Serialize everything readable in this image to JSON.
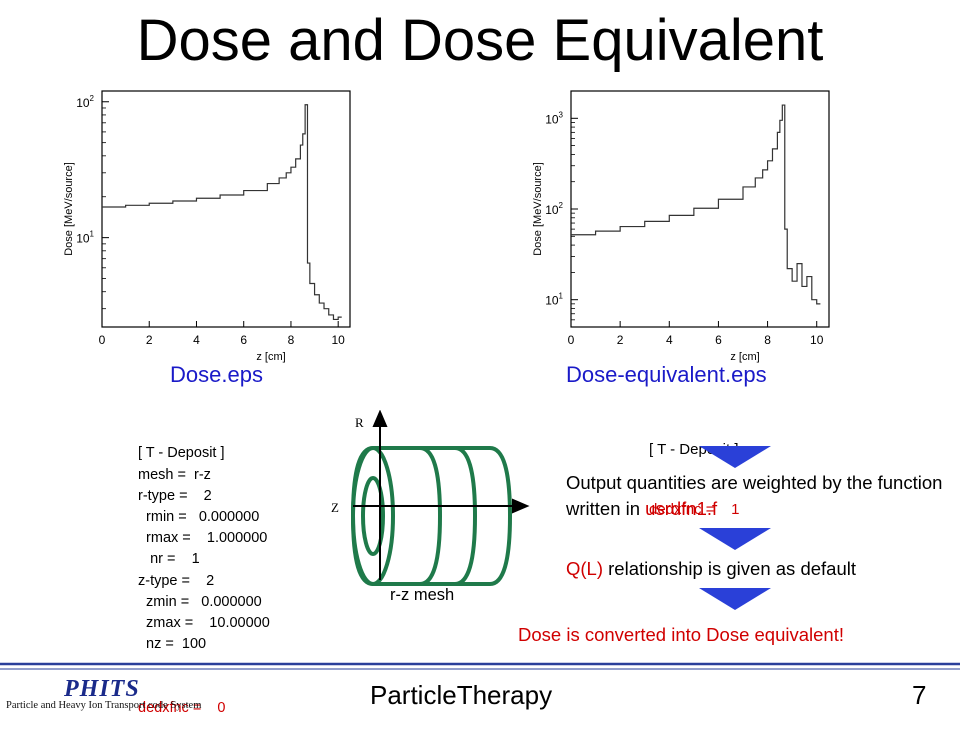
{
  "slide": {
    "title": "Dose and Dose Equivalent",
    "footer_center": "ParticleTherapy",
    "page_number": "7",
    "logo": {
      "text": "PHITS",
      "subtitle": "Particle and Heavy Ion Transport code System"
    }
  },
  "captions": {
    "left": "Dose.eps",
    "right": "Dose-equivalent.eps"
  },
  "input_left": {
    "lines": [
      "[ T - Deposit ]",
      "mesh =  r-z",
      "r-type =    2",
      "  rmin =   0.000000",
      "  rmax =    1.000000",
      "   nr =    1",
      "z-type =    2",
      "  zmin =   0.000000",
      "  zmax =    10.00000",
      "  nz =  100"
    ],
    "red_line": "dedxfnc =    0"
  },
  "input_right": {
    "header": "[ T - Deposit ]",
    "red_line": "dedxfnc =    1"
  },
  "mesh_diagram": {
    "label": "r-z mesh",
    "axis_r": "R",
    "axis_z": "Z"
  },
  "explanations": {
    "step1": {
      "text": "Output quantities are weighted by the function written in ",
      "highlight": "usrdfn1.f"
    },
    "step2": {
      "highlight": "Q(L)",
      "text": " relationship is given as default"
    },
    "conclusion": "Dose is converted into Dose equivalent!"
  },
  "colors": {
    "highlight_red": "#d00000",
    "caption_blue": "#1a1ac8",
    "arrow_blue": "#2a40d8",
    "mesh_green": "#1f7a4a"
  },
  "chart_data": [
    {
      "type": "line",
      "xlabel": "z [cm]",
      "ylabel": "Dose [MeV/source]",
      "xlim": [
        0,
        10.5
      ],
      "ylim": [
        2.2,
        120
      ],
      "log_y": true,
      "x_ticks": [
        "0",
        "2",
        "4",
        "6",
        "8",
        "10"
      ],
      "y_ticks": [
        "10",
        "10"
      ],
      "y_tick_exponents": [
        "1",
        "2"
      ],
      "x": [
        0,
        1,
        2,
        3,
        4,
        5,
        6,
        7,
        7.5,
        7.8,
        8.0,
        8.2,
        8.4,
        8.5,
        8.6,
        8.7,
        8.8,
        9.0,
        9.2,
        9.4,
        9.6,
        9.8,
        10.0
      ],
      "values": [
        16.8,
        17.3,
        17.9,
        18.6,
        19.5,
        20.6,
        22.2,
        25,
        27.5,
        30,
        33,
        38,
        48,
        58,
        95,
        6.5,
        4.6,
        3.8,
        3.3,
        3.0,
        2.7,
        2.5,
        2.6
      ]
    },
    {
      "type": "line",
      "xlabel": "z [cm]",
      "ylabel": "Dose [MeV/source]",
      "xlim": [
        0,
        10.5
      ],
      "ylim": [
        5,
        2000
      ],
      "log_y": true,
      "x_ticks": [
        "0",
        "2",
        "4",
        "6",
        "8",
        "10"
      ],
      "y_ticks": [
        "10",
        "10",
        "10"
      ],
      "y_tick_exponents": [
        "1",
        "2",
        "3"
      ],
      "x": [
        0,
        1,
        2,
        3,
        4,
        5,
        6,
        7,
        7.5,
        7.8,
        8.0,
        8.2,
        8.4,
        8.5,
        8.6,
        8.7,
        8.8,
        9.0,
        9.2,
        9.4,
        9.6,
        9.8,
        10.0
      ],
      "values": [
        52,
        57,
        64,
        73,
        85,
        102,
        128,
        175,
        220,
        270,
        340,
        460,
        700,
        950,
        1400,
        60,
        22,
        16,
        25,
        14,
        18,
        10,
        9
      ]
    }
  ]
}
